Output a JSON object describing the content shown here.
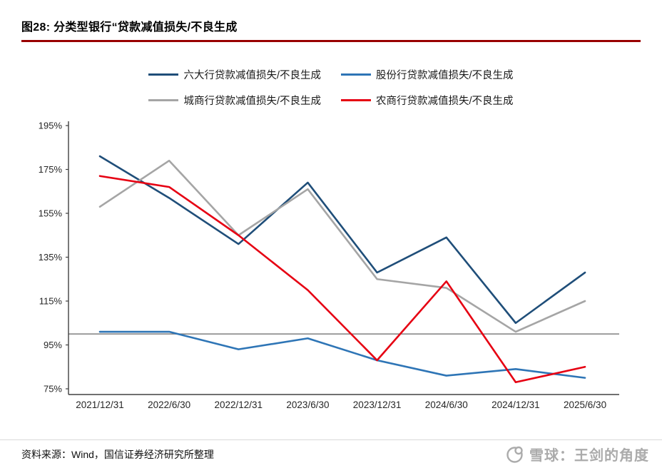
{
  "title": "图28: 分类型银行“贷款减值损失/不良生成",
  "footer": {
    "source": "资料来源：Wind，国信证券经济研究所整理",
    "watermark": "雪球：王剑的角度"
  },
  "colors": {
    "title_rule": "#990000",
    "axis": "#404040",
    "reference_line": "#7F7F7F",
    "watermark": "#ABABAB"
  },
  "chart_data": {
    "type": "line",
    "title": "图28: 分类型银行“贷款减值损失/不良生成",
    "x": [
      "2021/12/31",
      "2022/6/30",
      "2022/12/31",
      "2023/6/30",
      "2023/12/31",
      "2024/6/30",
      "2024/12/31",
      "2025/6/30"
    ],
    "series": [
      {
        "key": "big6",
        "name": "六大行贷款减值损失/不良生成",
        "color": "#1F4E79",
        "values": [
          181,
          162,
          141,
          169,
          128,
          144,
          105,
          128
        ]
      },
      {
        "key": "jsb",
        "name": "股份行贷款减值损失/不良生成",
        "color": "#2E75B6",
        "values": [
          101,
          101,
          93,
          98,
          88,
          81,
          84,
          80
        ]
      },
      {
        "key": "city",
        "name": "城商行贷款减值损失/不良生成",
        "color": "#A5A5A5",
        "values": [
          158,
          179,
          145,
          166,
          125,
          121,
          101,
          115
        ]
      },
      {
        "key": "rural",
        "name": "农商行贷款减值损失/不良生成",
        "color": "#E60012",
        "values": [
          172,
          167,
          145,
          120,
          88,
          124,
          78,
          85
        ]
      }
    ],
    "ylim": [
      75,
      195
    ],
    "yticks": [
      75,
      95,
      115,
      135,
      155,
      175,
      195
    ],
    "ytick_suffix": "%",
    "reference_line": 100,
    "legend_position": "top",
    "grid": false,
    "xlabel": "",
    "ylabel": ""
  }
}
